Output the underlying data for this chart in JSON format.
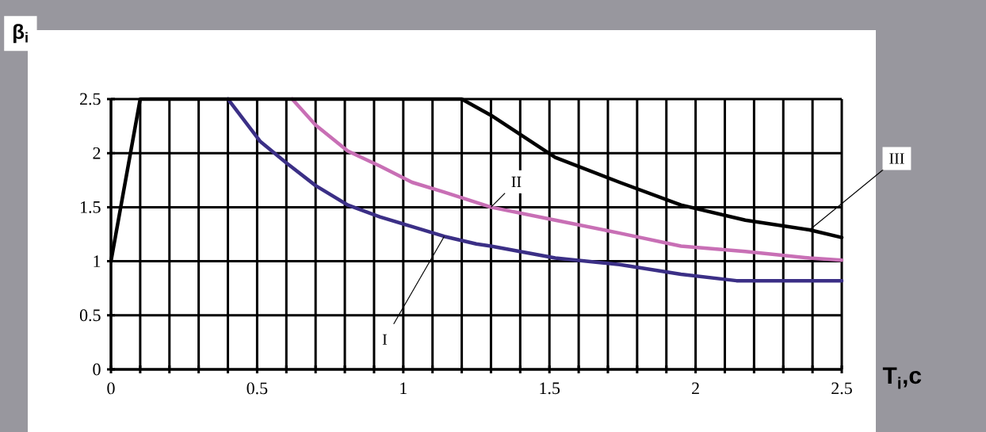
{
  "chart_data": {
    "type": "line",
    "xlabel": "T$_{i}$,c",
    "ylabel": "β$_{i}$",
    "xlim": [
      0,
      2.5
    ],
    "ylim": [
      0,
      2.5
    ],
    "xticks": [
      0,
      {
        "value": 0.1,
        "label": null
      },
      {
        "value": 0.2,
        "label": null
      },
      {
        "value": 0.3,
        "label": null
      },
      {
        "value": 0.4,
        "label": null
      },
      0.5,
      {
        "value": 0.6,
        "label": null
      },
      {
        "value": 0.7,
        "label": null
      },
      {
        "value": 0.8,
        "label": null
      },
      {
        "value": 0.9,
        "label": null
      },
      1,
      {
        "value": 1.1,
        "label": null
      },
      {
        "value": 1.2,
        "label": null
      },
      {
        "value": 1.3,
        "label": null
      },
      {
        "value": 1.4,
        "label": null
      },
      1.5,
      {
        "value": 1.6,
        "label": null
      },
      {
        "value": 1.7,
        "label": null
      },
      {
        "value": 1.8,
        "label": null
      },
      {
        "value": 1.9,
        "label": null
      },
      2,
      {
        "value": 2.1,
        "label": null
      },
      {
        "value": 2.2,
        "label": null
      },
      {
        "value": 2.3,
        "label": null
      },
      {
        "value": 2.4,
        "label": null
      },
      2.5
    ],
    "yticks": [
      0,
      0.5,
      1,
      1.5,
      2,
      2.5
    ],
    "grid": true,
    "marker": "none",
    "line_style": "solid",
    "series": [
      {
        "name": "I",
        "color": "#3b2f86",
        "x": [
          0.4,
          0.51,
          0.6,
          0.7,
          0.81,
          0.92,
          1.03,
          1.14,
          1.25,
          1.3,
          1.52,
          1.74,
          1.95,
          2.14,
          2.5
        ],
        "values": [
          2.5,
          2.11,
          1.91,
          1.7,
          1.52,
          1.41,
          1.32,
          1.23,
          1.16,
          1.14,
          1.03,
          0.97,
          0.88,
          0.82,
          0.82
        ]
      },
      {
        "name": "II",
        "color": "#c86fb5",
        "x": [
          0.62,
          0.7,
          0.81,
          0.92,
          1.03,
          1.14,
          1.3,
          1.52,
          1.74,
          1.95,
          2.17,
          2.39,
          2.5
        ],
        "values": [
          2.5,
          2.26,
          2.02,
          1.88,
          1.73,
          1.64,
          1.5,
          1.38,
          1.26,
          1.14,
          1.09,
          1.03,
          1.01
        ]
      },
      {
        "name": "III",
        "color": "#000000",
        "x": [
          0,
          0.1,
          1.2,
          1.3,
          1.52,
          1.74,
          1.95,
          2.17,
          2.39,
          2.5
        ],
        "values": [
          1.0,
          2.5,
          2.5,
          2.35,
          1.96,
          1.73,
          1.52,
          1.38,
          1.29,
          1.22
        ]
      }
    ]
  }
}
